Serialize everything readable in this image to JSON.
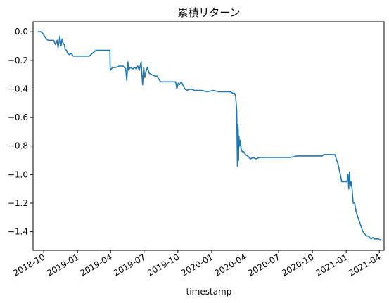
{
  "chart_data": {
    "type": "line",
    "title": "累積リターン",
    "xlabel": "timestamp",
    "ylabel": "",
    "x_is_date": true,
    "xlim": [
      "2018-09-02",
      "2021-04-14"
    ],
    "ylim": [
      -1.53,
      0.07
    ],
    "grid": false,
    "legend": false,
    "line_color": "#1f77b4",
    "x_ticks": [
      "2018-10",
      "2019-01",
      "2019-04",
      "2019-07",
      "2019-10",
      "2020-01",
      "2020-04",
      "2020-07",
      "2020-10",
      "2021-01",
      "2021-04"
    ],
    "y_ticks": [
      0.0,
      -0.2,
      -0.4,
      -0.6,
      -0.8,
      -1.0,
      -1.2,
      -1.4
    ],
    "y_tick_labels": [
      "0.0",
      "−0.2",
      "−0.4",
      "−0.6",
      "−0.8",
      "−1.0",
      "−1.2",
      "−1.4"
    ],
    "series": [
      {
        "x": [
          "2018-09-15",
          "2018-09-23",
          "2018-09-28",
          "2018-10-03",
          "2018-10-08",
          "2018-10-13",
          "2018-10-20",
          "2018-10-28",
          "2018-11-02",
          "2018-11-06",
          "2018-11-09",
          "2018-11-12",
          "2018-11-14",
          "2018-11-17",
          "2018-11-20",
          "2018-11-23",
          "2018-11-26",
          "2018-11-28",
          "2018-12-02",
          "2018-12-05",
          "2018-12-10",
          "2018-12-15",
          "2018-12-20",
          "2018-12-27",
          "2019-01-05",
          "2019-01-18",
          "2019-02-02",
          "2019-02-20",
          "2019-02-28",
          "2019-03-01",
          "2019-03-30",
          "2019-03-31",
          "2019-04-06",
          "2019-04-15",
          "2019-04-25",
          "2019-05-05",
          "2019-05-12",
          "2019-05-15",
          "2019-05-18",
          "2019-05-20",
          "2019-05-24",
          "2019-06-01",
          "2019-06-05",
          "2019-06-10",
          "2019-06-14",
          "2019-06-18",
          "2019-06-23",
          "2019-06-27",
          "2019-06-30",
          "2019-07-03",
          "2019-07-06",
          "2019-07-10",
          "2019-07-15",
          "2019-07-22",
          "2019-08-01",
          "2019-08-05",
          "2019-08-15",
          "2019-08-25",
          "2019-09-05",
          "2019-09-15",
          "2019-09-25",
          "2019-09-28",
          "2019-10-02",
          "2019-10-05",
          "2019-10-10",
          "2019-10-20",
          "2019-10-25",
          "2019-11-05",
          "2019-11-15",
          "2019-11-25",
          "2019-12-05",
          "2019-12-20",
          "2020-01-05",
          "2020-01-20",
          "2020-02-05",
          "2020-02-20",
          "2020-02-28",
          "2020-03-03",
          "2020-03-06",
          "2020-03-09",
          "2020-03-11",
          "2020-03-12",
          "2020-03-13",
          "2020-03-14",
          "2020-03-15",
          "2020-03-17",
          "2020-03-19",
          "2020-03-21",
          "2020-03-24",
          "2020-03-28",
          "2020-04-02",
          "2020-04-08",
          "2020-04-15",
          "2020-04-22",
          "2020-05-01",
          "2020-05-10",
          "2020-05-20",
          "2020-06-01",
          "2020-06-20",
          "2020-07-01",
          "2020-07-15",
          "2020-08-01",
          "2020-08-20",
          "2020-09-05",
          "2020-09-20",
          "2020-10-05",
          "2020-10-20",
          "2020-10-28",
          "2020-11-01",
          "2020-11-10",
          "2020-11-20",
          "2020-12-01",
          "2020-12-10",
          "2020-12-20",
          "2020-12-27",
          "2021-01-01",
          "2021-01-03",
          "2021-01-06",
          "2021-01-08",
          "2021-01-10",
          "2021-01-12",
          "2021-01-14",
          "2021-01-17",
          "2021-01-20",
          "2021-01-24",
          "2021-01-28",
          "2021-02-02",
          "2021-02-06",
          "2021-02-10",
          "2021-02-14",
          "2021-02-18",
          "2021-02-22",
          "2021-02-26",
          "2021-03-02",
          "2021-03-06",
          "2021-03-10",
          "2021-03-14",
          "2021-03-18",
          "2021-03-22",
          "2021-03-26",
          "2021-03-30",
          "2021-04-03",
          "2021-04-06"
        ],
        "y": [
          0.0,
          0.0,
          -0.01,
          -0.03,
          -0.05,
          -0.06,
          -0.06,
          -0.06,
          -0.09,
          -0.06,
          -0.11,
          -0.07,
          -0.03,
          -0.1,
          -0.05,
          -0.08,
          -0.09,
          -0.12,
          -0.13,
          -0.15,
          -0.16,
          -0.15,
          -0.17,
          -0.17,
          -0.17,
          -0.17,
          -0.17,
          -0.13,
          -0.13,
          -0.13,
          -0.13,
          -0.27,
          -0.25,
          -0.25,
          -0.24,
          -0.24,
          -0.26,
          -0.34,
          -0.21,
          -0.27,
          -0.25,
          -0.26,
          -0.25,
          -0.26,
          -0.24,
          -0.27,
          -0.21,
          -0.37,
          -0.25,
          -0.32,
          -0.28,
          -0.25,
          -0.29,
          -0.3,
          -0.31,
          -0.31,
          -0.35,
          -0.35,
          -0.35,
          -0.35,
          -0.35,
          -0.4,
          -0.36,
          -0.37,
          -0.35,
          -0.4,
          -0.41,
          -0.4,
          -0.41,
          -0.41,
          -0.41,
          -0.42,
          -0.41,
          -0.42,
          -0.42,
          -0.42,
          -0.43,
          -0.43,
          -0.45,
          -0.55,
          -0.94,
          -0.65,
          -0.68,
          -0.9,
          -0.73,
          -0.8,
          -0.76,
          -0.82,
          -0.84,
          -0.84,
          -0.86,
          -0.87,
          -0.89,
          -0.88,
          -0.89,
          -0.88,
          -0.88,
          -0.88,
          -0.88,
          -0.88,
          -0.88,
          -0.88,
          -0.87,
          -0.87,
          -0.87,
          -0.87,
          -0.87,
          -0.87,
          -0.86,
          -0.86,
          -0.86,
          -0.86,
          -0.93,
          -1.05,
          -1.05,
          -1.05,
          -1.05,
          -1.0,
          -1.1,
          -0.98,
          -1.08,
          -1.05,
          -1.1,
          -1.2,
          -1.2,
          -1.26,
          -1.3,
          -1.33,
          -1.36,
          -1.39,
          -1.41,
          -1.42,
          -1.43,
          -1.43,
          -1.44,
          -1.45,
          -1.44,
          -1.45,
          -1.45,
          -1.45,
          -1.45,
          -1.46,
          -1.45
        ]
      }
    ]
  }
}
